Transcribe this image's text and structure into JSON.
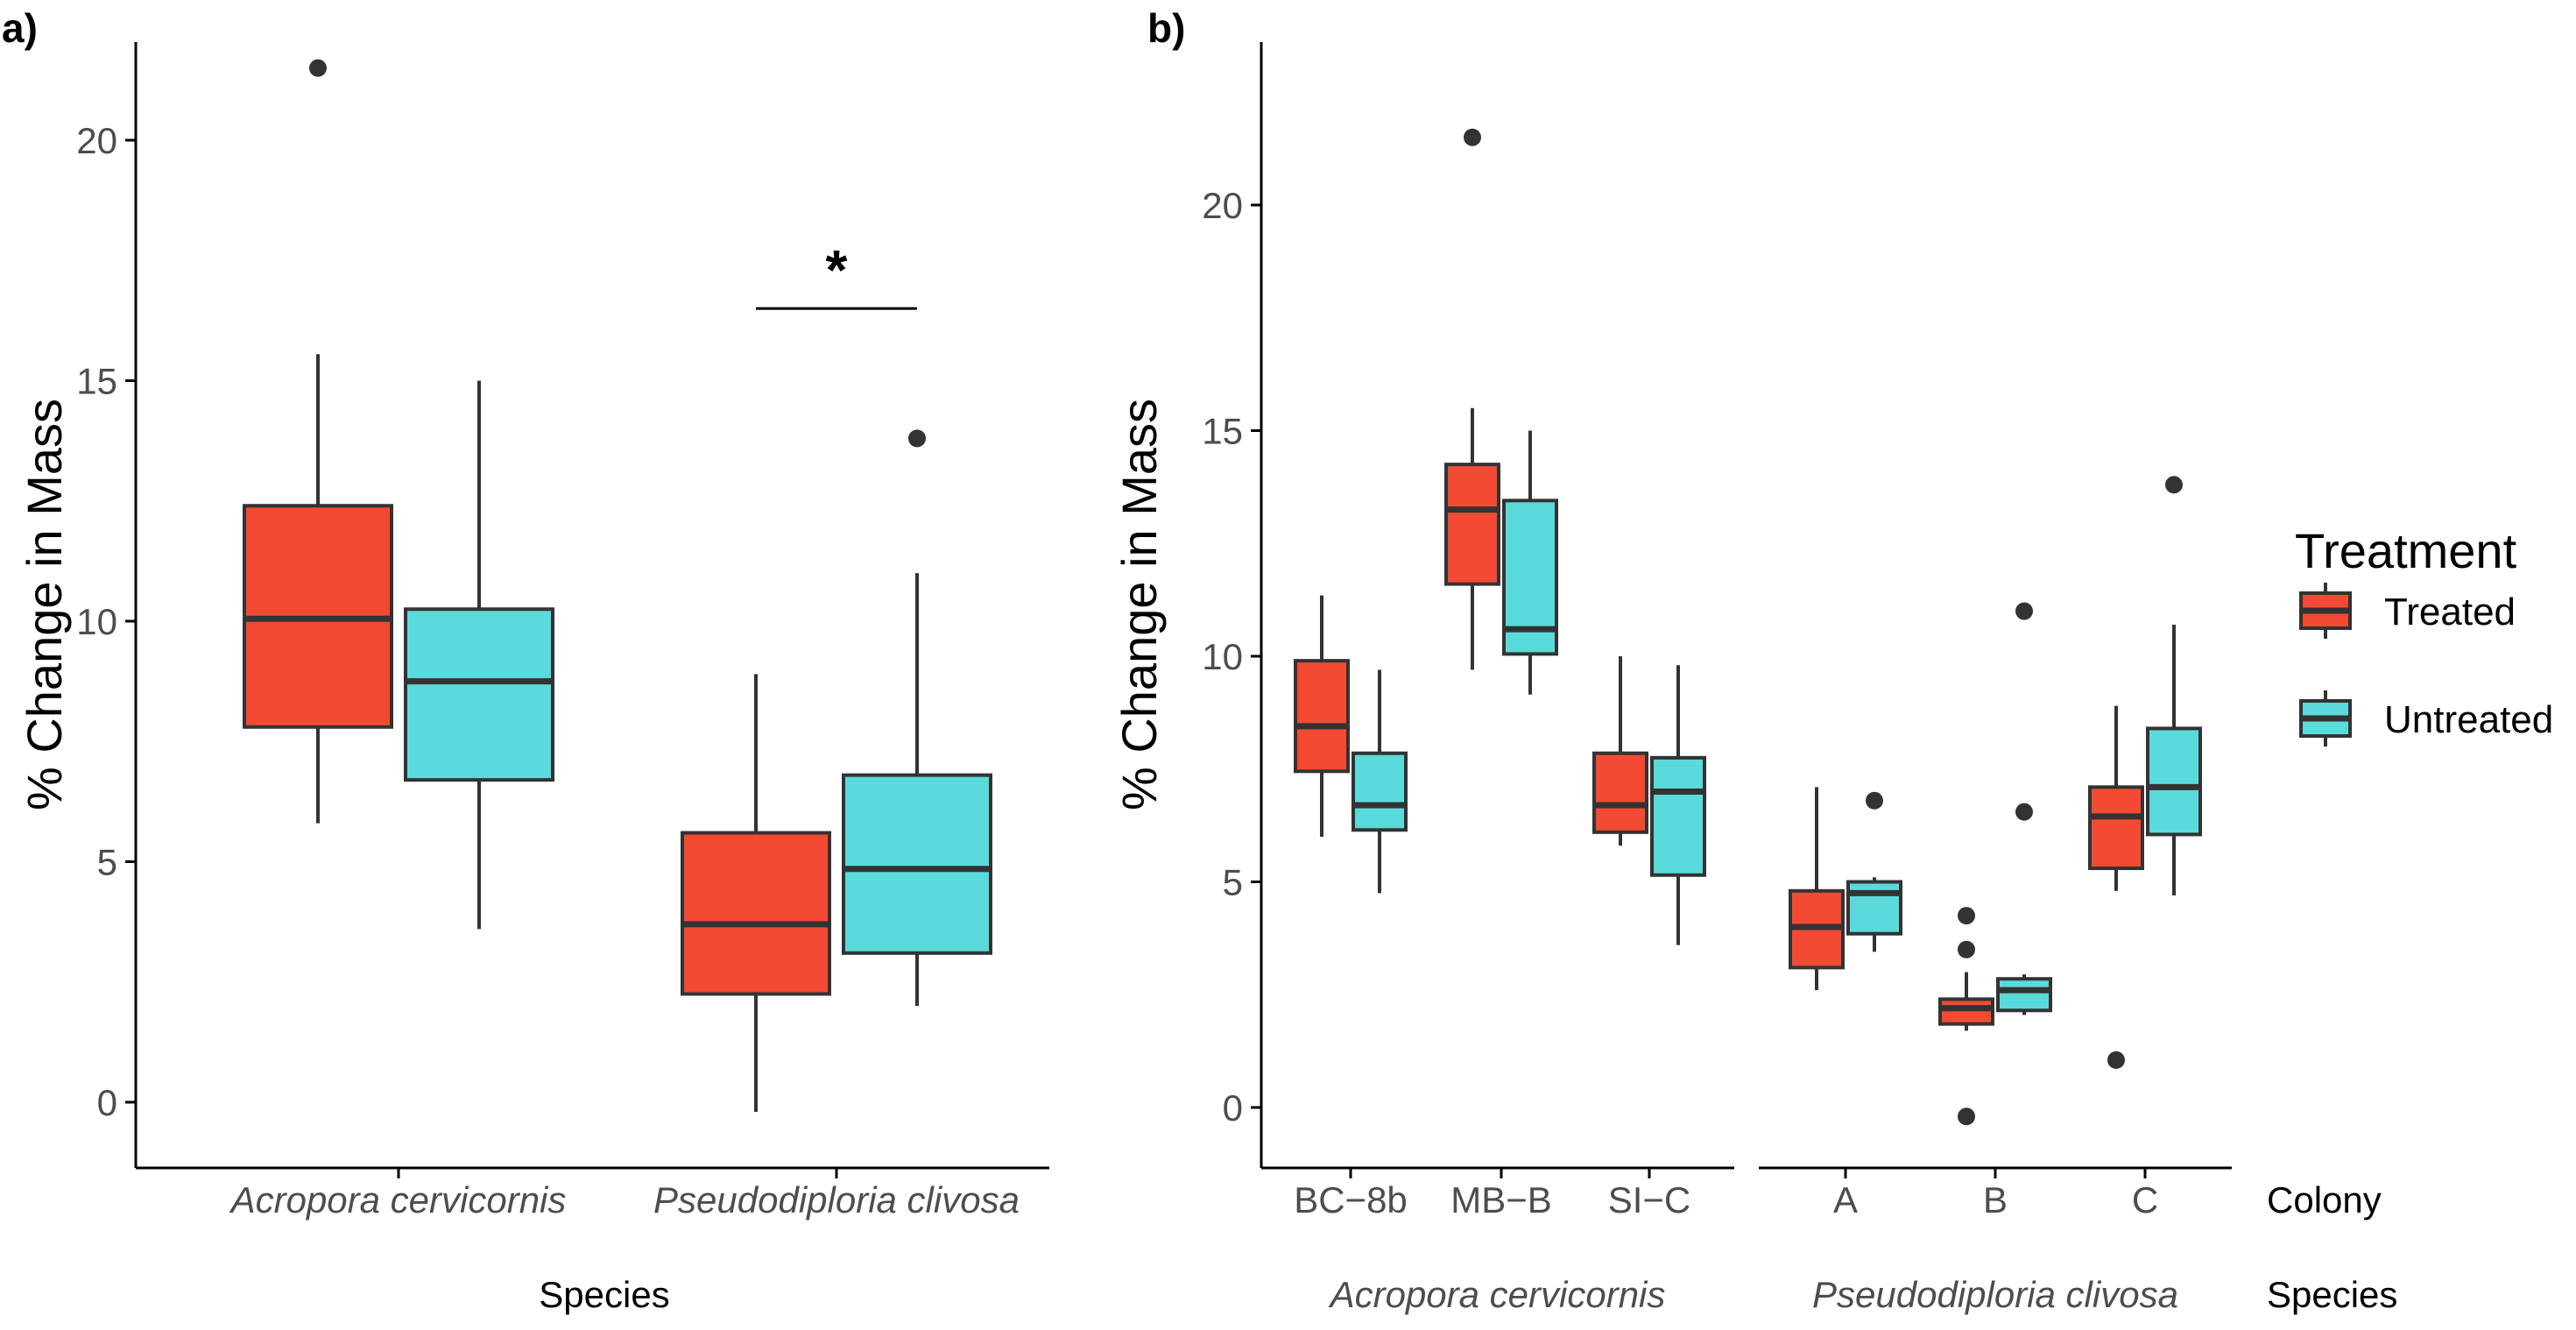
{
  "chart_data": [
    {
      "panel": "a)",
      "type": "box",
      "ylabel": "% Change in Mass",
      "xlabel": "Species",
      "ylim": [
        -1.2,
        22
      ],
      "yticks": [
        0,
        5,
        10,
        15,
        20
      ],
      "categories": [
        "Acropora cervicornis",
        "Pseudodiploria clivosa"
      ],
      "grid": false,
      "series": [
        {
          "name": "Treated",
          "color": "#F24A33",
          "boxes": [
            {
              "category": "Acropora cervicornis",
              "min": 5.8,
              "q1": 7.8,
              "median": 10.05,
              "q3": 12.4,
              "max": 15.55,
              "outliers": [
                21.5
              ]
            },
            {
              "category": "Pseudodiploria clivosa",
              "min": -0.2,
              "q1": 2.25,
              "median": 3.7,
              "q3": 5.6,
              "max": 8.9,
              "outliers": []
            }
          ]
        },
        {
          "name": "Untreated",
          "color": "#5ADADB",
          "boxes": [
            {
              "category": "Acropora cervicornis",
              "min": 3.6,
              "q1": 6.7,
              "median": 8.75,
              "q3": 10.25,
              "max": 15.0,
              "outliers": []
            },
            {
              "category": "Pseudodiploria clivosa",
              "min": 2.0,
              "q1": 3.1,
              "median": 4.85,
              "q3": 6.8,
              "max": 11.0,
              "outliers": [
                13.8
              ]
            }
          ]
        }
      ],
      "annotations": [
        {
          "text": "*",
          "category": "Pseudodiploria clivosa",
          "bar_y": 16.5
        }
      ]
    },
    {
      "panel": "b)",
      "type": "box",
      "ylabel": "% Change in Mass",
      "ylim": [
        -1.2,
        23
      ],
      "yticks": [
        0,
        5,
        10,
        15,
        20
      ],
      "grid": false,
      "x_title_colony": "Colony",
      "x_title_species": "Species",
      "groups": [
        {
          "species": "Acropora cervicornis",
          "colonies": [
            "BC−8b",
            "MB−B",
            "SI−C"
          ]
        },
        {
          "species": "Pseudodiploria clivosa",
          "colonies": [
            "A",
            "B",
            "C"
          ]
        }
      ],
      "series": [
        {
          "name": "Treated",
          "color": "#F24A33",
          "boxes": [
            {
              "colony": "BC−8b",
              "min": 6.0,
              "q1": 7.45,
              "median": 8.45,
              "q3": 9.9,
              "max": 11.35,
              "outliers": []
            },
            {
              "colony": "MB−B",
              "min": 9.7,
              "q1": 11.6,
              "median": 13.25,
              "q3": 14.25,
              "max": 15.5,
              "outliers": [
                21.5
              ]
            },
            {
              "colony": "SI−C",
              "min": 5.8,
              "q1": 6.1,
              "median": 6.7,
              "q3": 7.85,
              "max": 10.0,
              "outliers": []
            },
            {
              "colony": "A",
              "min": 2.6,
              "q1": 3.1,
              "median": 4.0,
              "q3": 4.8,
              "max": 7.1,
              "outliers": []
            },
            {
              "colony": "B",
              "min": 1.7,
              "q1": 1.85,
              "median": 2.2,
              "q3": 2.4,
              "max": 3.0,
              "outliers": [
                4.25,
                3.5,
                -0.2
              ]
            },
            {
              "colony": "C",
              "min": 4.8,
              "q1": 5.3,
              "median": 6.45,
              "q3": 7.1,
              "max": 8.9,
              "outliers": [
                1.05
              ]
            }
          ]
        },
        {
          "name": "Untreated",
          "color": "#5ADADB",
          "boxes": [
            {
              "colony": "BC−8b",
              "min": 4.75,
              "q1": 6.15,
              "median": 6.7,
              "q3": 7.85,
              "max": 9.7,
              "outliers": []
            },
            {
              "colony": "MB−B",
              "min": 9.15,
              "q1": 10.05,
              "median": 10.6,
              "q3": 13.45,
              "max": 15.0,
              "outliers": []
            },
            {
              "colony": "SI−C",
              "min": 3.6,
              "q1": 5.15,
              "median": 7.0,
              "q3": 7.75,
              "max": 9.8,
              "outliers": []
            },
            {
              "colony": "A",
              "min": 3.45,
              "q1": 3.85,
              "median": 4.75,
              "q3": 5.0,
              "max": 5.1,
              "outliers": [
                6.8
              ]
            },
            {
              "colony": "B",
              "min": 2.05,
              "q1": 2.15,
              "median": 2.6,
              "q3": 2.85,
              "max": 2.95,
              "outliers": [
                11.0,
                6.55
              ]
            },
            {
              "colony": "C",
              "min": 4.7,
              "q1": 6.05,
              "median": 7.1,
              "q3": 8.4,
              "max": 10.7,
              "outliers": [
                13.8
              ]
            }
          ]
        }
      ]
    }
  ],
  "legend": {
    "title": "Treatment",
    "placement": "right",
    "items": [
      {
        "label": "Treated",
        "color": "#F24A33"
      },
      {
        "label": "Untreated",
        "color": "#5ADADB"
      }
    ]
  }
}
